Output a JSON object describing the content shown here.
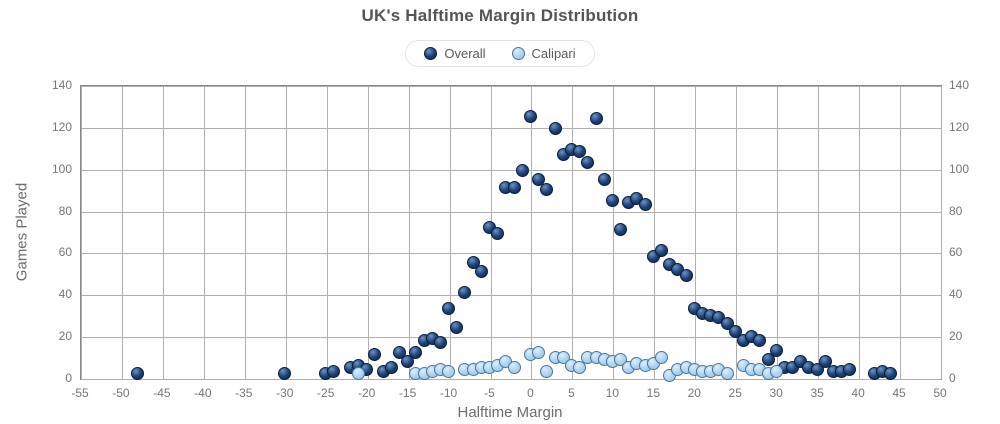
{
  "title": "UK's Halftime Margin Distribution",
  "legend": {
    "items": [
      {
        "label": "Overall"
      },
      {
        "label": "Calipari"
      }
    ]
  },
  "chart_data": {
    "type": "scatter",
    "title": "UK's Halftime Margin Distribution",
    "xlabel": "Halftime Margin",
    "ylabel": "Games Played",
    "xlim": [
      -55,
      50
    ],
    "ylim": [
      0,
      140
    ],
    "x_ticks": [
      -55,
      -50,
      -45,
      -40,
      -35,
      -30,
      -25,
      -20,
      -15,
      -10,
      -5,
      0,
      5,
      10,
      15,
      20,
      25,
      30,
      35,
      40,
      45,
      50
    ],
    "y_ticks": [
      0,
      20,
      40,
      60,
      80,
      100,
      120,
      140
    ],
    "grid": true,
    "legend_position": "top",
    "colors": {
      "grid": "#b0b0b0",
      "frame": "#888888",
      "title_text": "#555555",
      "tick_text": "#767676",
      "axis_title_text": "#6d6d6d"
    },
    "series": [
      {
        "name": "Overall",
        "marker": {
          "fill": "#1d4077",
          "highlight": "#6b93c4",
          "shade": "#0d2747",
          "border": "#0a1e3c"
        },
        "points": [
          [
            -48,
            2
          ],
          [
            -30,
            2
          ],
          [
            -25,
            2
          ],
          [
            -24,
            3
          ],
          [
            -22,
            5
          ],
          [
            -21,
            6
          ],
          [
            -20,
            4
          ],
          [
            -19,
            11
          ],
          [
            -18,
            3
          ],
          [
            -17,
            5
          ],
          [
            -16,
            12
          ],
          [
            -15,
            8
          ],
          [
            -14,
            12
          ],
          [
            -13,
            18
          ],
          [
            -12,
            19
          ],
          [
            -11,
            17
          ],
          [
            -10,
            33
          ],
          [
            -9,
            24
          ],
          [
            -8,
            41
          ],
          [
            -7,
            55
          ],
          [
            -6,
            51
          ],
          [
            -5,
            72
          ],
          [
            -4,
            69
          ],
          [
            -3,
            91
          ],
          [
            -2,
            91
          ],
          [
            -1,
            99
          ],
          [
            0,
            125
          ],
          [
            1,
            95
          ],
          [
            2,
            90
          ],
          [
            3,
            119
          ],
          [
            4,
            107
          ],
          [
            5,
            109
          ],
          [
            6,
            108
          ],
          [
            7,
            103
          ],
          [
            8,
            124
          ],
          [
            9,
            95
          ],
          [
            10,
            85
          ],
          [
            11,
            71
          ],
          [
            12,
            84
          ],
          [
            13,
            86
          ],
          [
            14,
            83
          ],
          [
            15,
            58
          ],
          [
            16,
            61
          ],
          [
            17,
            54
          ],
          [
            18,
            52
          ],
          [
            19,
            49
          ],
          [
            20,
            33
          ],
          [
            21,
            31
          ],
          [
            22,
            30
          ],
          [
            23,
            29
          ],
          [
            24,
            26
          ],
          [
            25,
            22
          ],
          [
            26,
            18
          ],
          [
            27,
            20
          ],
          [
            28,
            18
          ],
          [
            29,
            9
          ],
          [
            30,
            13
          ],
          [
            31,
            5
          ],
          [
            32,
            5
          ],
          [
            33,
            8
          ],
          [
            34,
            5
          ],
          [
            35,
            4
          ],
          [
            36,
            8
          ],
          [
            37,
            3
          ],
          [
            38,
            3
          ],
          [
            39,
            4
          ],
          [
            42,
            2
          ],
          [
            43,
            3
          ],
          [
            44,
            2
          ]
        ]
      },
      {
        "name": "Calipari",
        "marker": {
          "fill": "#aed3f0",
          "highlight": "#ddeefb",
          "shade": "#96c2e6",
          "border": "#49759f"
        },
        "points": [
          [
            -21,
            2
          ],
          [
            -14,
            2
          ],
          [
            -13,
            2
          ],
          [
            -12,
            3
          ],
          [
            -11,
            4
          ],
          [
            -10,
            3
          ],
          [
            -8,
            4
          ],
          [
            -7,
            4
          ],
          [
            -6,
            5
          ],
          [
            -5,
            5
          ],
          [
            -4,
            6
          ],
          [
            -3,
            8
          ],
          [
            -2,
            5
          ],
          [
            0,
            11
          ],
          [
            1,
            12
          ],
          [
            2,
            3
          ],
          [
            3,
            10
          ],
          [
            4,
            10
          ],
          [
            5,
            6
          ],
          [
            6,
            5
          ],
          [
            7,
            10
          ],
          [
            8,
            10
          ],
          [
            9,
            9
          ],
          [
            10,
            8
          ],
          [
            11,
            9
          ],
          [
            12,
            5
          ],
          [
            13,
            7
          ],
          [
            14,
            6
          ],
          [
            15,
            7
          ],
          [
            16,
            10
          ],
          [
            17,
            1
          ],
          [
            18,
            4
          ],
          [
            19,
            5
          ],
          [
            20,
            4
          ],
          [
            21,
            3
          ],
          [
            22,
            3
          ],
          [
            23,
            4
          ],
          [
            24,
            2
          ],
          [
            26,
            6
          ],
          [
            27,
            4
          ],
          [
            28,
            4
          ],
          [
            29,
            2
          ],
          [
            30,
            3
          ]
        ]
      }
    ]
  }
}
